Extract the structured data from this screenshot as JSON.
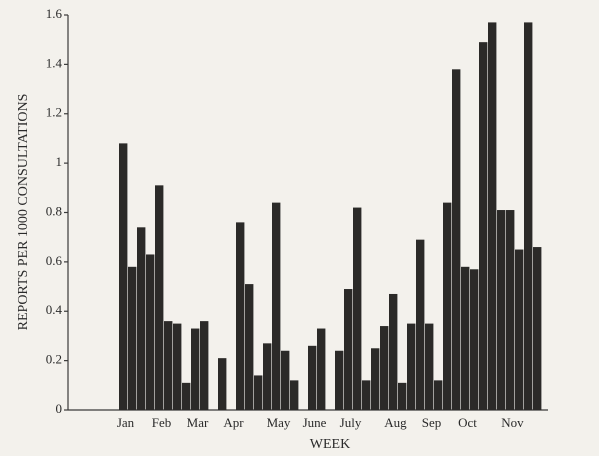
{
  "chart_data": {
    "type": "bar",
    "y_label": "REPORTS PER 1000 CONSULTATIONS",
    "x_label": "WEEK",
    "categories": [
      "Jan",
      null,
      null,
      null,
      "Feb",
      null,
      null,
      null,
      "Mar",
      null,
      null,
      null,
      "Apr",
      null,
      null,
      null,
      null,
      "May",
      null,
      null,
      null,
      "June",
      null,
      null,
      null,
      "July",
      null,
      null,
      null,
      null,
      "Aug",
      null,
      null,
      null,
      "Sep",
      null,
      null,
      null,
      "Oct",
      null,
      null,
      null,
      null,
      "Nov",
      null,
      null,
      null
    ],
    "values": [
      1.08,
      0.58,
      0.74,
      0.63,
      0.91,
      0.36,
      0.35,
      0.11,
      0.33,
      0.36,
      0,
      0.21,
      0,
      0.76,
      0.51,
      0.14,
      0.27,
      0.84,
      0.24,
      0.12,
      0,
      0.26,
      0.33,
      0,
      0.24,
      0.49,
      0.82,
      0.12,
      0.25,
      0.34,
      0.47,
      0.11,
      0.35,
      0.69,
      0.35,
      0.12,
      0.84,
      1.38,
      0.58,
      0.57,
      1.49,
      1.57,
      0.81,
      0.81,
      0.65,
      1.57,
      0.66
    ],
    "color": "#2b2a28",
    "ylim": [
      0,
      1.6
    ],
    "yticks": [
      0,
      0.2,
      0.4,
      0.6,
      0.8,
      1,
      1.2,
      1.4,
      1.6
    ],
    "grid": false
  }
}
